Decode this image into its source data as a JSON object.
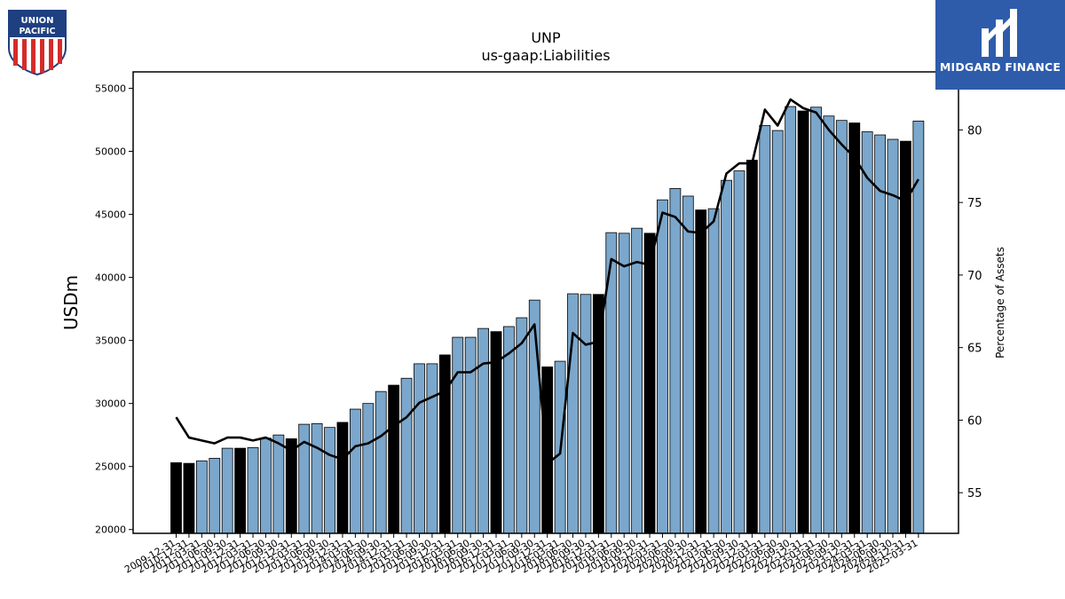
{
  "chart_data": {
    "type": "bar",
    "title": "UNP",
    "subtitle": "us-gaap:Liabilities",
    "ylabel": "USDm",
    "y2label": "Percentage of Assets",
    "ylim": [
      19700,
      56300
    ],
    "y2lim": [
      52.2,
      84.0
    ],
    "yticks": [
      20000,
      25000,
      30000,
      35000,
      40000,
      45000,
      50000,
      55000
    ],
    "y2ticks": [
      55,
      60,
      65,
      70,
      75,
      80
    ],
    "grid": false,
    "colors": {
      "quarter_bar": "#7ba7cc",
      "annual_bar": "#000000",
      "line": "#000000"
    },
    "categories": [
      "2009-12-31",
      "2010-12-31",
      "2011-03-31",
      "2011-06-30",
      "2011-09-30",
      "2011-12-31",
      "2012-03-31",
      "2012-06-30",
      "2012-09-30",
      "2012-12-31",
      "2013-03-31",
      "2013-06-30",
      "2013-09-30",
      "2013-12-31",
      "2014-03-31",
      "2014-06-30",
      "2014-09-30",
      "2014-12-31",
      "2015-03-31",
      "2015-06-30",
      "2015-09-30",
      "2015-12-31",
      "2016-03-31",
      "2016-06-30",
      "2016-09-30",
      "2016-12-31",
      "2017-03-31",
      "2017-06-30",
      "2017-09-30",
      "2017-12-31",
      "2018-03-31",
      "2018-06-30",
      "2018-09-30",
      "2018-12-31",
      "2019-03-31",
      "2019-06-30",
      "2019-09-30",
      "2019-12-31",
      "2020-03-31",
      "2020-06-30",
      "2020-09-30",
      "2020-12-31",
      "2021-03-31",
      "2021-06-30",
      "2021-09-30",
      "2021-12-31",
      "2022-03-31",
      "2022-06-30",
      "2022-09-30",
      "2022-12-31",
      "2023-03-31",
      "2023-06-30",
      "2023-09-30",
      "2023-12-31",
      "2024-03-31",
      "2024-06-30",
      "2024-09-30",
      "2024-12-31",
      "2025-03-31"
    ],
    "annual_flags": [
      1,
      1,
      0,
      0,
      0,
      1,
      0,
      0,
      0,
      1,
      0,
      0,
      0,
      1,
      0,
      0,
      0,
      1,
      0,
      0,
      0,
      1,
      0,
      0,
      0,
      1,
      0,
      0,
      0,
      1,
      0,
      0,
      0,
      1,
      0,
      0,
      0,
      1,
      0,
      0,
      0,
      1,
      0,
      0,
      0,
      1,
      0,
      0,
      0,
      1,
      0,
      0,
      0,
      1,
      0,
      0,
      0,
      1,
      0
    ],
    "series": [
      {
        "name": "",
        "type": "bar",
        "axis": "left",
        "values": [
          25300,
          25250,
          25450,
          25650,
          26450,
          26450,
          26500,
          27250,
          27500,
          27200,
          28350,
          28400,
          28100,
          28500,
          29550,
          30000,
          30950,
          31450,
          32000,
          33150,
          33150,
          33850,
          35250,
          35250,
          35950,
          35700,
          36100,
          36800,
          38200,
          32900,
          33350,
          38700,
          38650,
          38650,
          43550,
          43500,
          43900,
          43500,
          46150,
          47050,
          46450,
          45350,
          45450,
          47700,
          48450,
          49300,
          52050,
          51650,
          53550,
          53200,
          53500,
          52800,
          52450,
          52250,
          51550,
          51300,
          50950,
          50800,
          52400
        ]
      },
      {
        "name": "",
        "type": "line",
        "axis": "right",
        "values": [
          60.2,
          58.8,
          58.6,
          58.4,
          58.8,
          58.8,
          58.6,
          58.8,
          58.4,
          57.9,
          58.5,
          58.1,
          57.6,
          57.3,
          58.2,
          58.4,
          58.9,
          59.6,
          60.2,
          61.2,
          61.6,
          62.0,
          63.3,
          63.3,
          63.9,
          64.0,
          64.6,
          65.3,
          66.6,
          57.0,
          57.7,
          66.0,
          65.2,
          65.4,
          71.1,
          70.6,
          70.9,
          70.7,
          74.3,
          74.0,
          73.0,
          72.9,
          73.7,
          77.0,
          77.7,
          77.7,
          81.4,
          80.3,
          82.1,
          81.5,
          81.2,
          80.0,
          79.0,
          78.1,
          76.7,
          75.8,
          75.5,
          75.1,
          76.6
        ]
      }
    ]
  },
  "logos": {
    "left": {
      "line1": "UNION",
      "line2": "PACIFIC"
    },
    "right": {
      "brand": "MIDGARD FINANCE"
    }
  }
}
